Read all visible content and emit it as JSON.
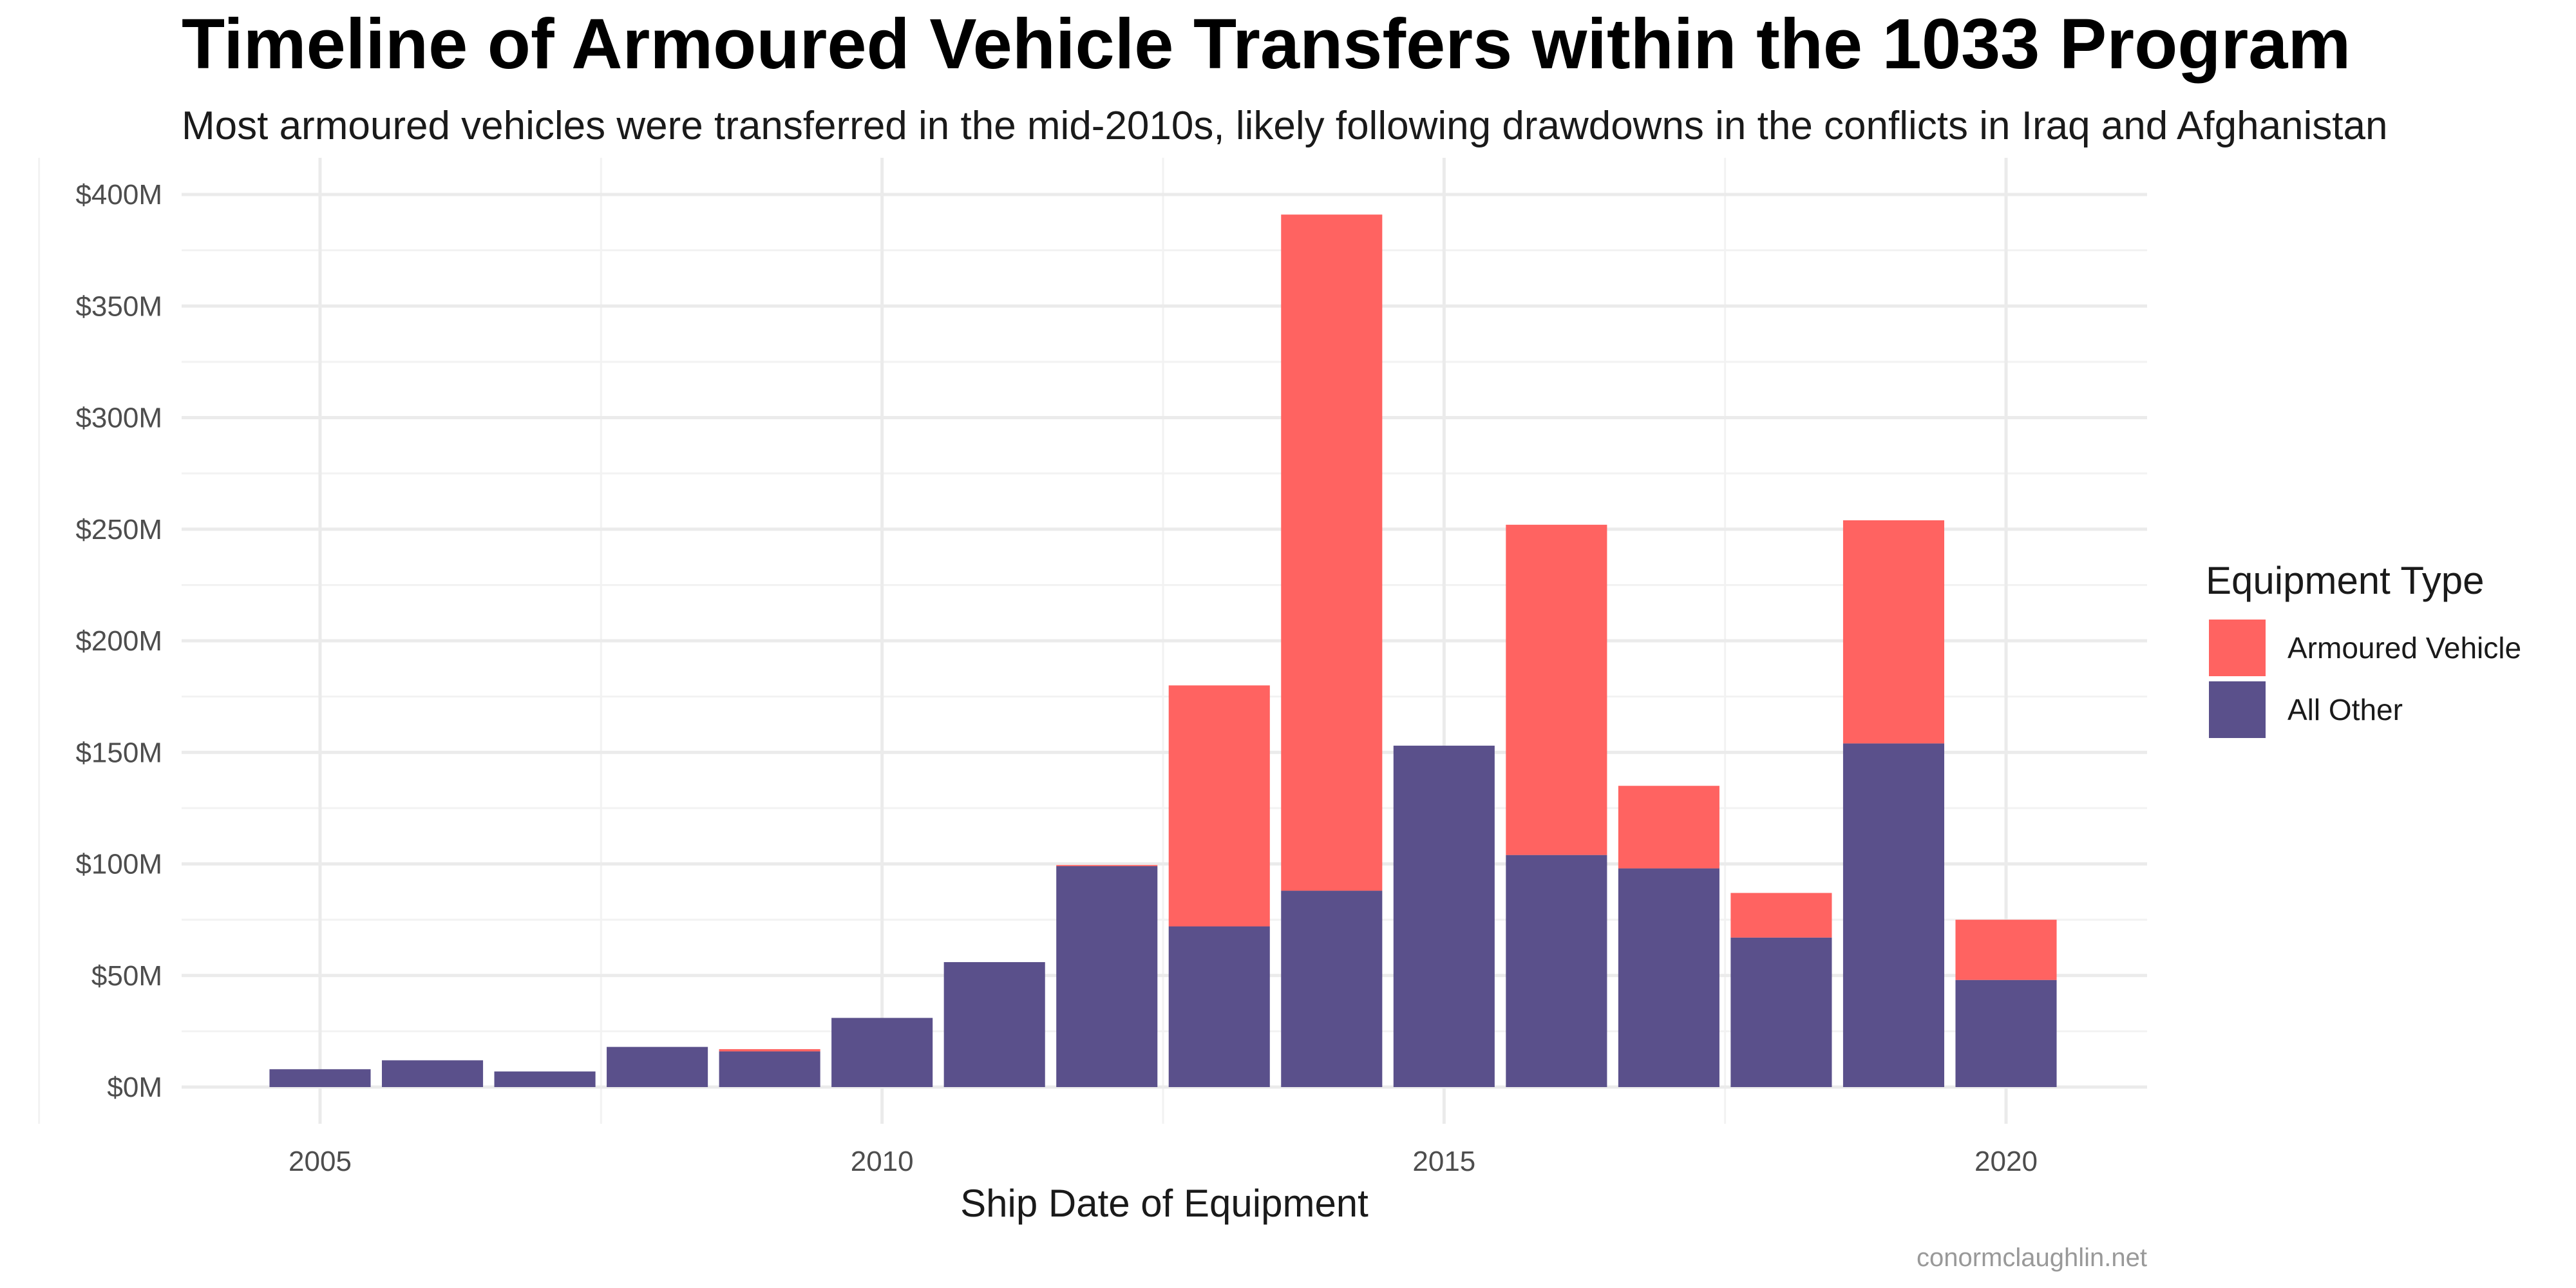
{
  "chart_data": {
    "type": "bar",
    "stacked": true,
    "title": "Timeline of Armoured Vehicle Transfers within the 1033 Program",
    "subtitle": "Most armoured vehicles were transferred in the mid-2010s, likely following drawdowns in the conflicts in Iraq and Afghanistan",
    "xlabel": "Ship Date of Equipment",
    "ylabel": "",
    "caption": "conormclaughlin.net",
    "x": [
      2005,
      2006,
      2007,
      2008,
      2009,
      2010,
      2011,
      2012,
      2013,
      2014,
      2015,
      2016,
      2017,
      2018,
      2019,
      2020
    ],
    "x_ticks": [
      2005,
      2010,
      2015,
      2020
    ],
    "x_tick_labels": [
      "2005",
      "2010",
      "2015",
      "2020"
    ],
    "ylim": [
      0,
      400
    ],
    "y_ticks": [
      0,
      50,
      100,
      150,
      200,
      250,
      300,
      350,
      400
    ],
    "y_tick_labels": [
      "$0M",
      "$50M",
      "$100M",
      "$150M",
      "$200M",
      "$250M",
      "$300M",
      "$350M",
      "$400M"
    ],
    "y_unit": "$M",
    "legend_title": "Equipment Type",
    "legend_position": "right",
    "grid": true,
    "series": [
      {
        "name": "All Other",
        "color": "#5a508b",
        "values": [
          8,
          12,
          7,
          18,
          16,
          31,
          56,
          99,
          72,
          88,
          153,
          104,
          98,
          67,
          154,
          48
        ]
      },
      {
        "name": "Armoured Vehicle",
        "color": "#ff6361",
        "values": [
          0,
          0,
          0,
          0,
          1,
          0,
          0,
          0.5,
          108,
          303,
          0,
          148,
          37,
          20,
          100,
          27
        ]
      }
    ],
    "legend_order": [
      "Armoured Vehicle",
      "All Other"
    ]
  }
}
